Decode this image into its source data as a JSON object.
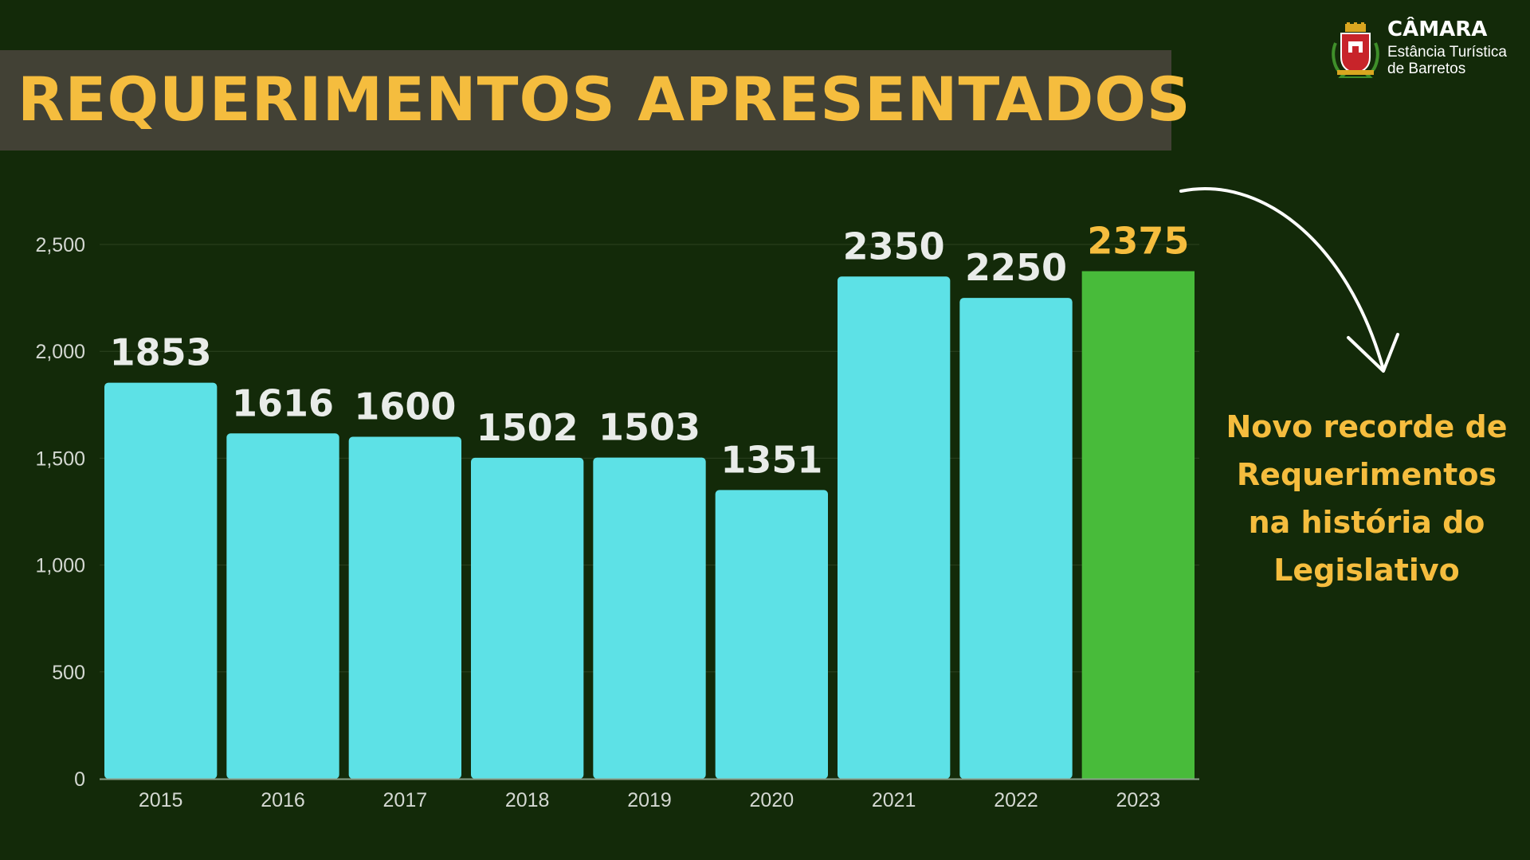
{
  "title": "REQUERIMENTOS APRESENTADOS",
  "logo": {
    "title": "CÂMARA",
    "subtitle_line1": "Estância Turística",
    "subtitle_line2": "de Barretos"
  },
  "callout_lines": [
    "Novo recorde de",
    "Requerimentos",
    "na história do",
    "Legislativo"
  ],
  "colors": {
    "background": "#132a09",
    "title_band": "#424135",
    "accent": "#f5bd3e",
    "bar": "#5de1e6",
    "highlight_bar": "#48bb3a",
    "data_label": "#e9ece9",
    "axis_text": "#d4d8d2",
    "gridline": "#2c4220"
  },
  "chart_data": {
    "type": "bar",
    "categories": [
      "2015",
      "2016",
      "2017",
      "2018",
      "2019",
      "2020",
      "2021",
      "2022",
      "2023"
    ],
    "values": [
      1853,
      1616,
      1600,
      1502,
      1503,
      1351,
      2350,
      2250,
      2375
    ],
    "data_labels": [
      "1853",
      "1616",
      "1600",
      "1502",
      "1503",
      "1351",
      "2350",
      "2250",
      "2375"
    ],
    "highlight_index": 8,
    "ylim": [
      0,
      2500
    ],
    "yticks": [
      0,
      500,
      1000,
      1500,
      2000,
      2500
    ],
    "ytick_labels": [
      "0",
      "500",
      "1,000",
      "1,500",
      "2,000",
      "2,500"
    ],
    "grid": true,
    "xlabel": "",
    "ylabel": ""
  }
}
